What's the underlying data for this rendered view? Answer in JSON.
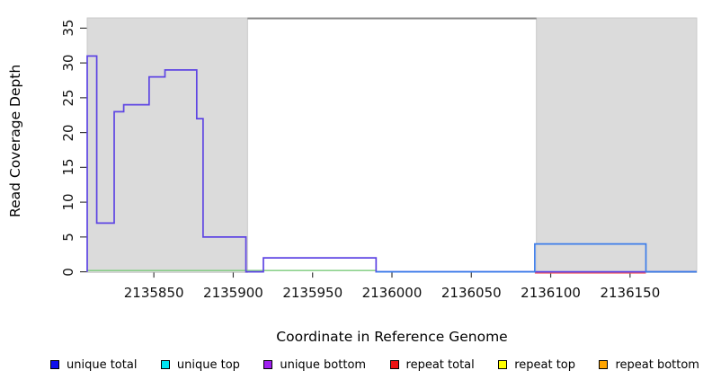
{
  "figure": {
    "y_axis": {
      "label": "Read Coverage Depth"
    },
    "x_axis": {
      "label": "Coordinate in Reference Genome"
    }
  },
  "legend": {
    "items": [
      {
        "label": "unique total",
        "color": "#0f0fee"
      },
      {
        "label": "unique top",
        "color": "#00e4f0"
      },
      {
        "label": "unique bottom",
        "color": "#a020f0"
      },
      {
        "label": "repeat total",
        "color": "#ee1111"
      },
      {
        "label": "repeat top",
        "color": "#ffff00"
      },
      {
        "label": "repeat bottom",
        "color": "#ffa500"
      }
    ]
  },
  "chart_data": {
    "type": "line",
    "subtype": "step-coverage",
    "title": "",
    "xlabel": "Coordinate in Reference Genome",
    "ylabel": "Read Coverage Depth",
    "xlim": [
      2135808,
      2136192
    ],
    "ylim": [
      0,
      36.4
    ],
    "x_ticks": [
      2135850,
      2135900,
      2135950,
      2136000,
      2136050,
      2136100,
      2136150
    ],
    "y_ticks": [
      0,
      5,
      10,
      15,
      20,
      25,
      30,
      35
    ],
    "grid": false,
    "legend_position": "bottom",
    "shaded_regions": [
      {
        "x0": 2135808,
        "x1": 2135909,
        "fill": "#dbdbdb",
        "border": "#c9c9c9"
      },
      {
        "x0": 2136091,
        "x1": 2136192,
        "fill": "#dbdbdb",
        "border": "#c9c9c9"
      }
    ],
    "top_rule": {
      "x0": 2135909,
      "x1": 2136091,
      "y": 36.4,
      "color": "#8a8a8a"
    },
    "series": [
      {
        "id": "zero-baseline-green",
        "name": "zero baseline (green, left span)",
        "color": "#7ccb7c",
        "segments": [
          [
            2135808,
            2135990,
            0
          ]
        ]
      },
      {
        "id": "zero-baseline-red",
        "name": "repeat total zero baseline",
        "color": "#f0555f",
        "segments": [
          [
            2136090,
            2136160,
            0
          ]
        ]
      },
      {
        "id": "unique-coverage-step",
        "name": "unique bottom / unique total coverage step",
        "color": "#5e45e3",
        "start_from_zero": true,
        "segments": [
          [
            2135808,
            2135814,
            31
          ],
          [
            2135814,
            2135825,
            7
          ],
          [
            2135825,
            2135831,
            23
          ],
          [
            2135831,
            2135847,
            24
          ],
          [
            2135847,
            2135857,
            28
          ],
          [
            2135857,
            2135877,
            29
          ],
          [
            2135877,
            2135881,
            22
          ],
          [
            2135881,
            2135908,
            5
          ],
          [
            2135908,
            2135919,
            0
          ],
          [
            2135919,
            2135990,
            2
          ],
          [
            2135990,
            2136192,
            0
          ]
        ]
      },
      {
        "id": "unique-total-box",
        "name": "unique total / unique top coverage box",
        "color": "#3d7de9",
        "segments": [
          [
            2135990,
            2136090,
            0
          ],
          [
            2136090,
            2136160,
            4
          ],
          [
            2136160,
            2136192,
            0
          ]
        ]
      }
    ]
  }
}
